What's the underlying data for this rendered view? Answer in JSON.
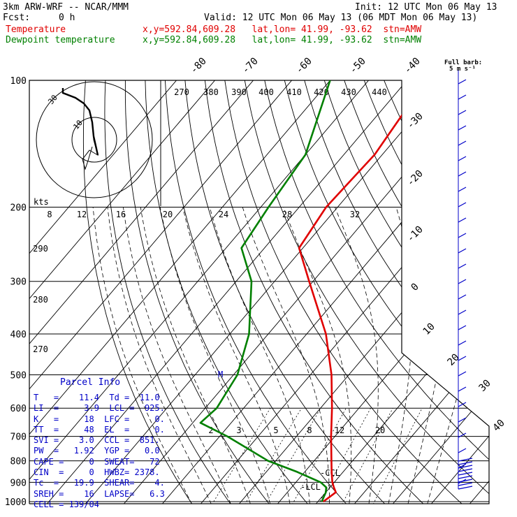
{
  "header": {
    "model": "3km ARW-WRF -- NCAR/MMM",
    "init": "Init: 12 UTC Mon 06 May 13",
    "fcst_label": "Fcst:",
    "fcst_value": "0 h",
    "valid": "Valid: 12 UTC Mon 06 May 13 (06 MDT Mon 06 May 13)",
    "temp_label": "Temperature",
    "temp_loc": "x,y=592.84,609.28   lat,lon= 41.99, -93.62  stn=AMW",
    "dew_label": "Dewpoint temperature",
    "dew_loc": "x,y=592.84,609.28   lat,lon= 41.99, -93.62  stn=AMW"
  },
  "wind_legend": {
    "line1": "Full barb:",
    "line2": "5 m s⁻¹"
  },
  "parcel": {
    "title": "Parcel Info",
    "rows": [
      "T   =    11.4  Td =  11.0",
      "LI  =     3.9  LCL =  925.",
      "K   =     18  LFC =     0.",
      "TT  =     48  EL  =     0.",
      "SVI =    3.0  CCL =  851.",
      "PW  =   1.92  YGP =   0.0",
      "CAPE =     0  SWEAT=   72",
      "CIN  =     0  HWBZ= 2378.",
      "Tc  =   19.9  SHEAR=    4.",
      "SREH =    16  LAPSE=   6.3",
      "CELL = 139/04"
    ]
  },
  "colors": {
    "temperature": "#e00000",
    "dewpoint": "#008000",
    "parcel": "#0000c8",
    "grid": "#000000"
  },
  "chart_data": {
    "type": "line",
    "title": "",
    "xlabel": "",
    "ylabel": "",
    "y_scale": "log-pressure",
    "pressure_levels_hPa": [
      100,
      200,
      300,
      400,
      500,
      600,
      700,
      800,
      900,
      1000
    ],
    "isotherm_labels_C": [
      -80,
      -70,
      -60,
      -50,
      -40,
      -30,
      -20,
      -10,
      0,
      10,
      20,
      30,
      40
    ],
    "potential_temp_labels_K": [
      "270",
      "380",
      "390",
      "400",
      "410",
      "420",
      "430",
      "440"
    ],
    "dry_adiabat_labels_K": [
      "290",
      "280",
      "270"
    ],
    "mixing_ratio_labels": [
      "2",
      "3",
      "5",
      "8",
      "12",
      "20"
    ],
    "hodograph_speed_labels": [
      "8",
      "12",
      "16",
      "20",
      "24",
      "28",
      "32"
    ],
    "hodograph_kts_label": "kts",
    "hodograph_ring_labels": [
      "30",
      "10"
    ],
    "lcl_labels": [
      "-CCL",
      "-LCL"
    ],
    "series": [
      {
        "name": "Temperature",
        "color": "#e00000",
        "points": [
          [
            1000,
            11.4
          ],
          [
            975,
            12.0
          ],
          [
            950,
            12.6
          ],
          [
            925,
            11.0
          ],
          [
            900,
            9.5
          ],
          [
            850,
            7.0
          ],
          [
            800,
            4.5
          ],
          [
            700,
            -1.0
          ],
          [
            600,
            -7.0
          ],
          [
            500,
            -14.5
          ],
          [
            400,
            -25.0
          ],
          [
            300,
            -41.0
          ],
          [
            250,
            -51.0
          ],
          [
            200,
            -53.0
          ],
          [
            150,
            -52.0
          ],
          [
            100,
            -55.0
          ]
        ]
      },
      {
        "name": "Dewpoint temperature",
        "color": "#008000",
        "points": [
          [
            1000,
            11.0
          ],
          [
            975,
            10.5
          ],
          [
            950,
            10.0
          ],
          [
            925,
            9.0
          ],
          [
            900,
            6.5
          ],
          [
            850,
            -2.0
          ],
          [
            800,
            -12.0
          ],
          [
            700,
            -28.0
          ],
          [
            650,
            -38.0
          ],
          [
            600,
            -37.0
          ],
          [
            500,
            -39.0
          ],
          [
            400,
            -45.0
          ],
          [
            300,
            -56.0
          ],
          [
            250,
            -66.0
          ],
          [
            200,
            -68.0
          ],
          [
            150,
            -70.0
          ],
          [
            100,
            -80.0
          ]
        ]
      }
    ]
  }
}
